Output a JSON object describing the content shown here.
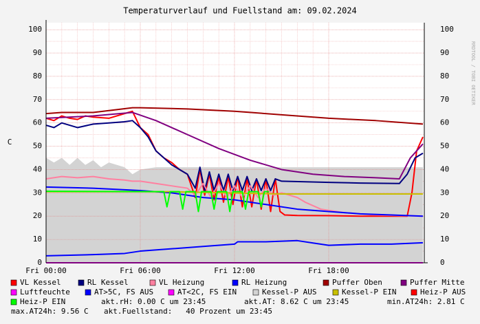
{
  "chart_data": {
    "type": "line",
    "title": "Temperaturverlauf und Fuellstand am: 09.02.2024",
    "y_label": "C",
    "watermark": "RRDTOOL / TOBI OETIKER",
    "xlim": [
      0,
      24
    ],
    "ylim": [
      0,
      103
    ],
    "xticks": [
      {
        "value": 0,
        "label": "Fri 00:00"
      },
      {
        "value": 6,
        "label": "Fri 06:00"
      },
      {
        "value": 12,
        "label": "Fri 12:00"
      },
      {
        "value": 18,
        "label": "Fri 18:00"
      }
    ],
    "yticks": [
      0,
      10,
      20,
      30,
      40,
      50,
      60,
      70,
      80,
      90,
      100
    ],
    "grid": true,
    "series": [
      {
        "name": "VL Kessel",
        "color": "#ff0000",
        "x": [
          0,
          0.5,
          1,
          1.5,
          2,
          2.5,
          3,
          4,
          5,
          5.5,
          6,
          6.5,
          7,
          7.5,
          8,
          8.5,
          9,
          9.5,
          9.8,
          10.1,
          10.4,
          10.7,
          11.0,
          11.3,
          11.6,
          11.9,
          12.2,
          12.5,
          12.8,
          13.1,
          13.4,
          13.7,
          14.0,
          14.3,
          14.6,
          14.9,
          15.2,
          16,
          18,
          20,
          22,
          23,
          23.3,
          23.6,
          24
        ],
        "values": [
          62,
          61,
          63,
          62,
          61.5,
          63,
          62.5,
          62,
          64,
          65,
          58,
          55,
          48,
          45,
          43,
          40,
          38,
          28,
          40,
          29,
          38,
          27,
          37,
          26,
          37,
          25,
          37,
          24,
          36,
          24,
          36,
          23,
          36,
          22,
          36,
          22,
          20.5,
          20.3,
          20.2,
          20,
          20,
          20,
          30,
          48,
          54
        ]
      },
      {
        "name": "RL Kessel",
        "color": "#000080",
        "x": [
          0,
          0.5,
          1,
          1.5,
          2,
          3,
          4,
          5,
          5.5,
          6,
          6.5,
          7,
          7.5,
          8,
          8.5,
          9,
          9.5,
          9.8,
          10.1,
          10.4,
          10.7,
          11.0,
          11.3,
          11.6,
          11.9,
          12.2,
          12.5,
          12.8,
          13.1,
          13.4,
          13.7,
          14.0,
          14.3,
          14.6,
          15,
          18,
          20,
          22.5,
          23,
          23.5,
          24
        ],
        "values": [
          59,
          58,
          60,
          59,
          58,
          59.5,
          60,
          60.5,
          61,
          58,
          54,
          48,
          45,
          42,
          40,
          38,
          32,
          41,
          31,
          39,
          31,
          38,
          31,
          38,
          31,
          37,
          31,
          37,
          31,
          36,
          31,
          36,
          31,
          36,
          35,
          34.5,
          34.2,
          34,
          38,
          45,
          47
        ]
      },
      {
        "name": "VL Heizung",
        "color": "#ff80a0",
        "x": [
          0,
          1,
          2,
          3,
          4,
          5,
          5.5,
          6,
          7,
          8,
          9,
          9.5,
          10,
          10.5,
          11,
          11.5,
          12,
          12.5,
          13,
          13.5,
          14,
          14.5,
          15,
          16,
          16.5,
          17.5,
          19,
          21,
          24
        ],
        "values": [
          36,
          37,
          36.5,
          37,
          36,
          35.5,
          35,
          35,
          34,
          33,
          32,
          29,
          34,
          28,
          34,
          28,
          33,
          28,
          33,
          28,
          32,
          29,
          30,
          28,
          26,
          23,
          21.5,
          20.5,
          20
        ]
      },
      {
        "name": "RL Heizung",
        "color": "#0000ff",
        "x": [
          0,
          3,
          6,
          8,
          9,
          10,
          12,
          14,
          16,
          18,
          20,
          22,
          24
        ],
        "values": [
          32.5,
          32,
          31,
          30,
          29,
          28,
          27,
          25,
          23,
          22,
          21,
          20.5,
          20
        ]
      },
      {
        "name": "Puffer Oben",
        "color": "#a00000",
        "x": [
          0,
          1,
          3,
          5.5,
          6,
          9,
          12,
          15,
          18,
          21,
          24
        ],
        "values": [
          64,
          64.5,
          64.5,
          66.5,
          66.5,
          66,
          65,
          63.5,
          62,
          61,
          59.5
        ]
      },
      {
        "name": "Puffer Mitte",
        "color": "#800080",
        "x": [
          0,
          3,
          5.5,
          7,
          9,
          11,
          13,
          15,
          17,
          19,
          21,
          22.5,
          23.2,
          24
        ],
        "values": [
          62,
          63,
          64.5,
          61,
          55,
          49,
          44,
          40,
          38,
          37,
          36.5,
          36,
          45,
          51
        ]
      },
      {
        "name": "Luftfeuchte",
        "color": "#ff00ff",
        "x": [
          0,
          24
        ],
        "values": [
          0,
          0
        ]
      },
      {
        "name": "AT>5C, FS AUS",
        "color": "#0000ff",
        "x": [
          0,
          3,
          5,
          6,
          8,
          10,
          12,
          12.2,
          14,
          16,
          17,
          18,
          20,
          22,
          24
        ],
        "values": [
          3,
          3.5,
          4,
          5,
          6,
          7,
          8,
          9,
          9,
          9.5,
          8.5,
          7.5,
          8,
          8,
          8.6
        ]
      },
      {
        "name": "AT<2C, FS EIN",
        "color": "#ff00ff"
      },
      {
        "name": "Kessel-P AUS",
        "color": "#d3d3d3",
        "area": true,
        "x": [
          0,
          0.5,
          1,
          1.5,
          2,
          2.5,
          3,
          3.5,
          4,
          5,
          5.5,
          6,
          7,
          12,
          18,
          23.5,
          24
        ],
        "values": [
          45,
          43,
          45,
          42,
          45,
          42,
          44,
          41,
          43,
          41,
          38,
          40,
          41,
          41,
          41,
          41,
          41
        ]
      },
      {
        "name": "Kessel-P EIN",
        "color": "#c8c000",
        "x": [
          0,
          8,
          15,
          24
        ],
        "values": [
          30.5,
          30.5,
          29.5,
          29.5
        ]
      },
      {
        "name": "Heiz-P AUS",
        "color": "#ff0000"
      },
      {
        "name": "Heiz-P EIN",
        "color": "#00ff00",
        "x": [
          0,
          7.5,
          7.7,
          7.9,
          8.5,
          8.7,
          8.9,
          9.5,
          9.7,
          9.9,
          10.5,
          10.7,
          10.9,
          11.5,
          11.7,
          11.9,
          12.5,
          12.7,
          12.9,
          13.5,
          13.7,
          13.9,
          14.2
        ],
        "values": [
          30.7,
          30.5,
          24,
          30.5,
          30.5,
          23,
          30.5,
          30.5,
          22,
          30.5,
          30.5,
          23,
          30.5,
          30.5,
          22,
          30.5,
          30.5,
          23,
          30.5,
          30.5,
          24,
          30.5,
          30.5
        ]
      }
    ],
    "comments": [
      "akt.rH: 0.00 C um 23:45",
      "akt.AT: 8.62 C um 23:45",
      "min.AT24h: 2.81 C",
      "max.AT24h: 9.56 C",
      "akt.Fuellstand:   40 Prozent um 23:45"
    ]
  }
}
